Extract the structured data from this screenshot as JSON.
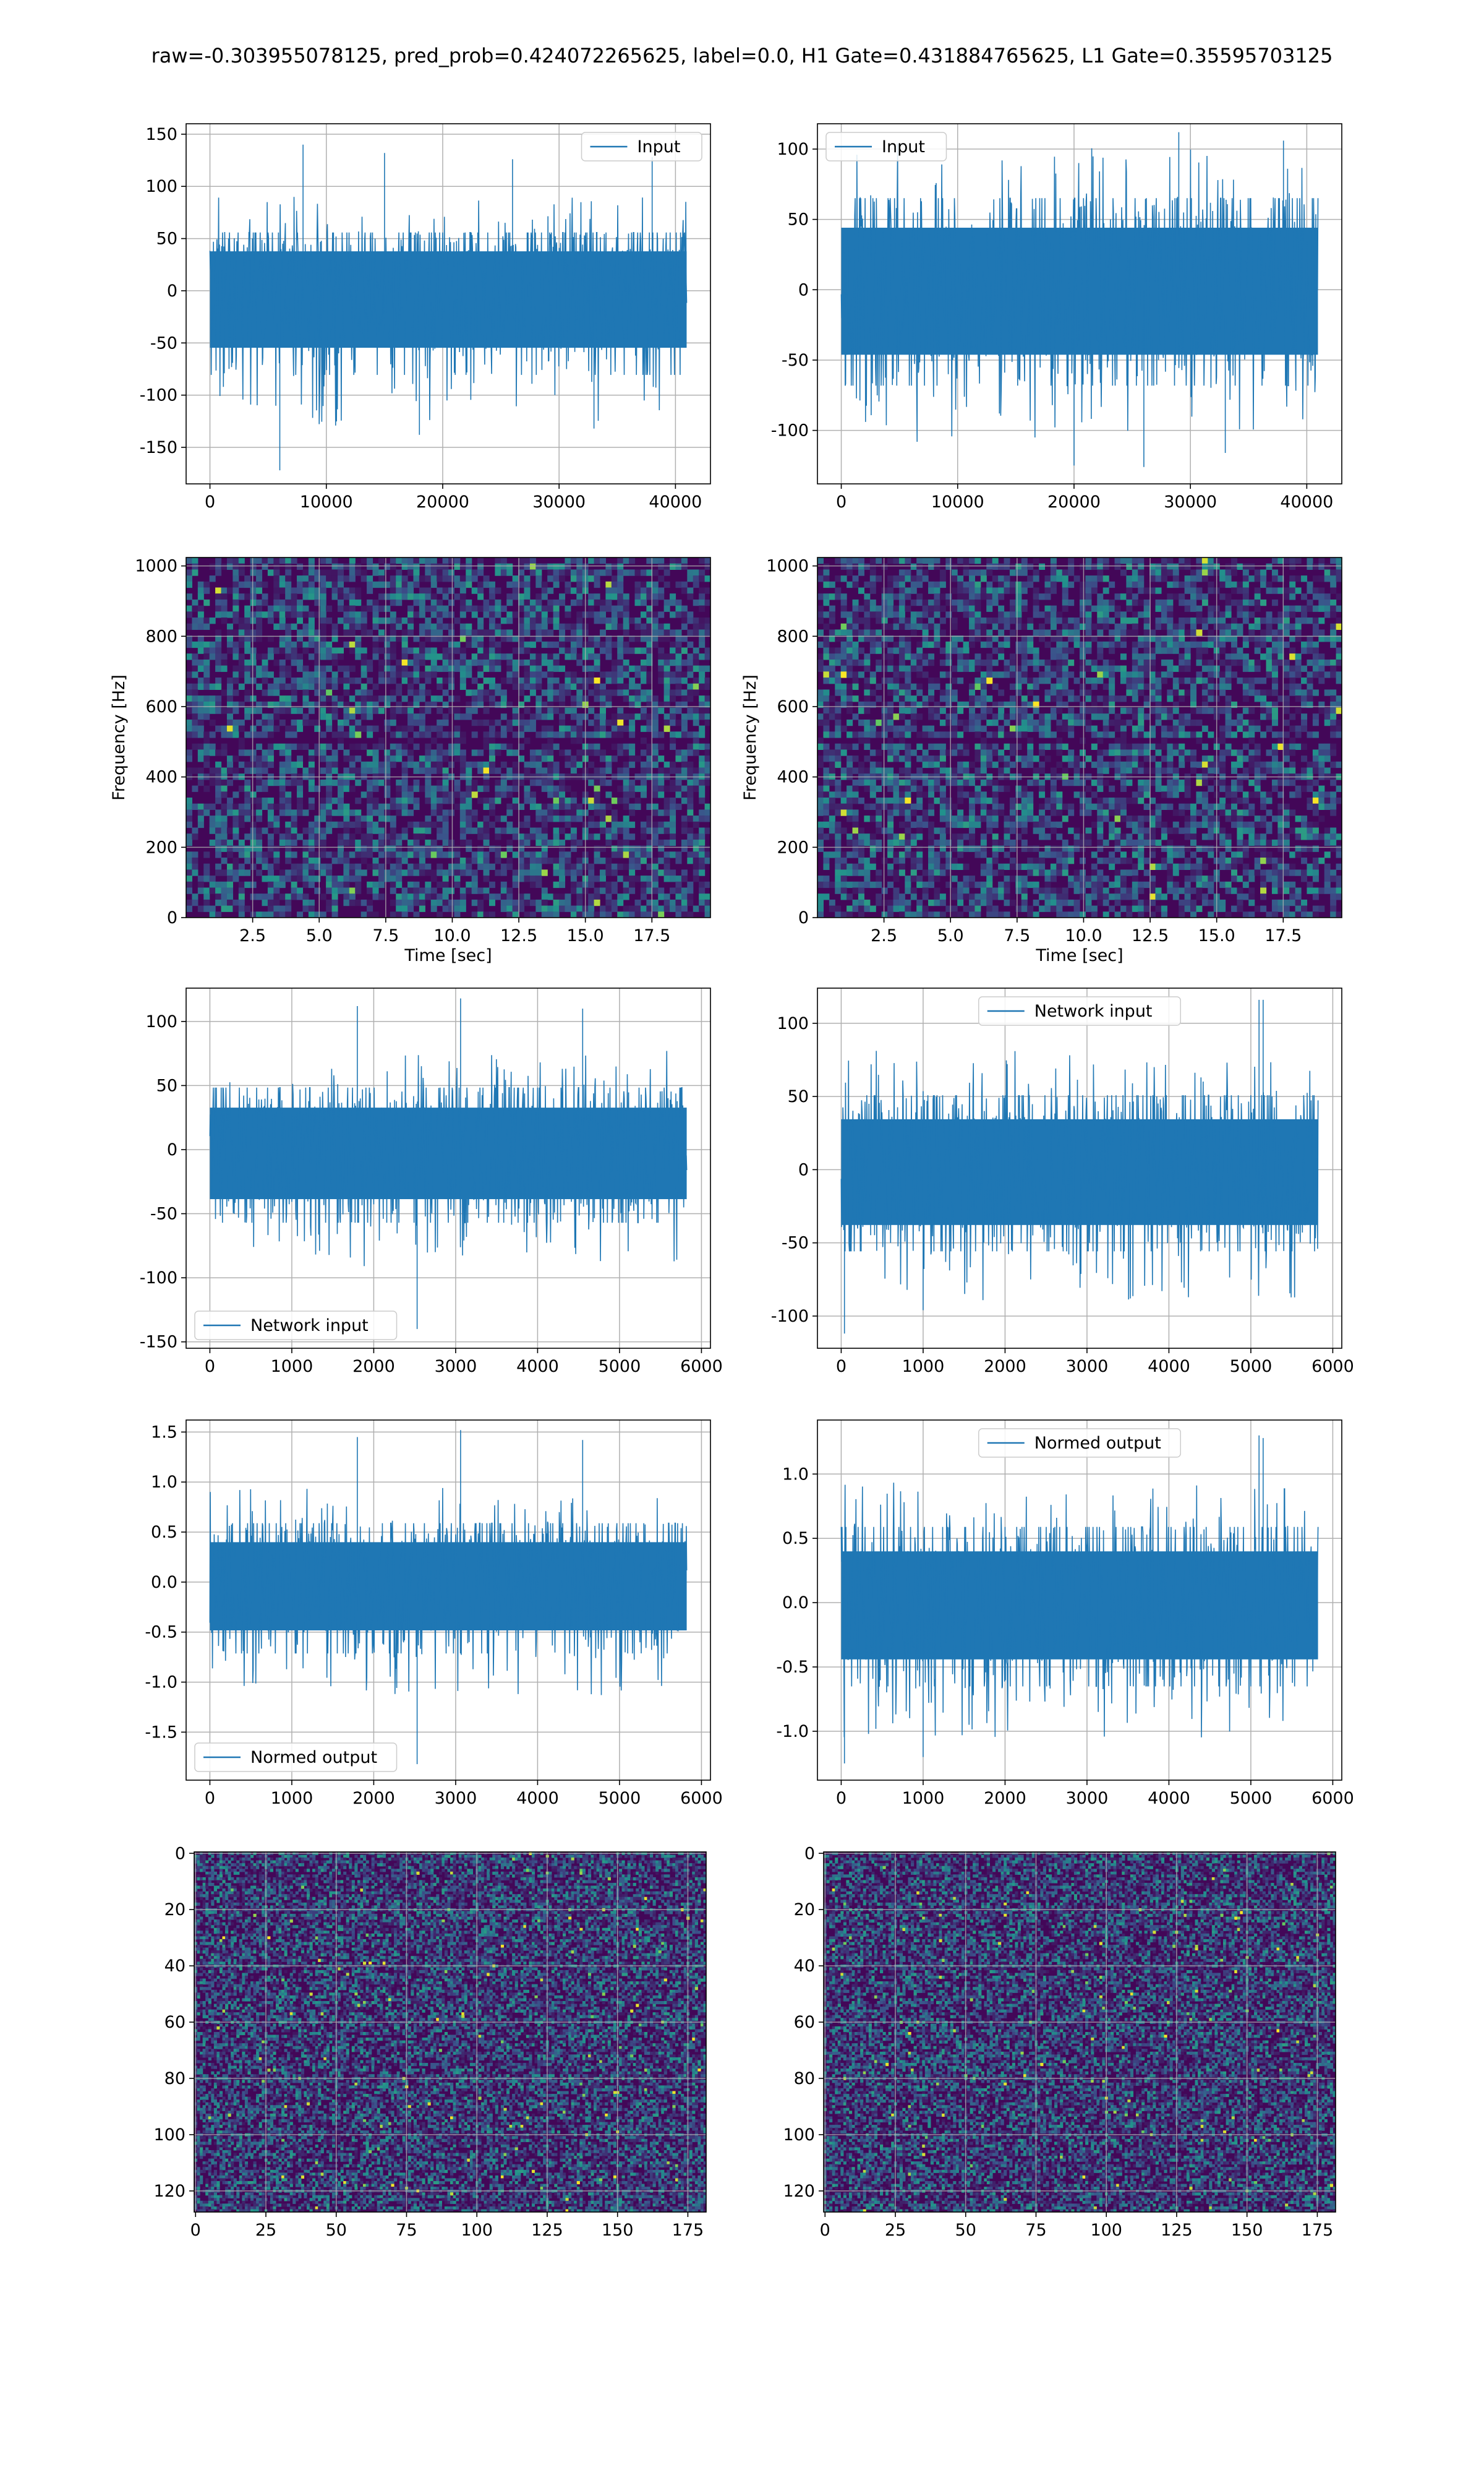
{
  "figure": {
    "suptitle": "raw=-0.303955078125, pred_prob=0.424072265625, label=0.0, H1 Gate=0.431884765625, L1 Gate=0.35595703125",
    "colors": {
      "line": "#1f77b4",
      "grid": "#b0b0b0",
      "cmap_low": "#440154",
      "cmap_mid": "#21918c",
      "cmap_high": "#fde725"
    }
  },
  "chart_data": [
    {
      "id": "p11",
      "type": "line",
      "xlim": [
        -2048,
        43008
      ],
      "ylim": [
        -185,
        160
      ],
      "xticks": [
        0,
        10000,
        20000,
        30000,
        40000
      ],
      "yticks": [
        -150,
        -100,
        -50,
        0,
        50,
        100,
        150
      ],
      "grid": true,
      "legend": "upper right",
      "series": [
        {
          "name": "Input",
          "x": [
            0,
            40960
          ],
          "band": [
            -130,
            90
          ],
          "spikes": [
            [
              6000,
              -172
            ],
            [
              8000,
              140
            ],
            [
              15000,
              132
            ],
            [
              18000,
              -138
            ],
            [
              26000,
              126
            ],
            [
              33000,
              -132
            ],
            [
              38000,
              128
            ]
          ]
        }
      ]
    },
    {
      "id": "p12",
      "type": "line",
      "xlim": [
        -2048,
        43008
      ],
      "ylim": [
        -138,
        118
      ],
      "xticks": [
        0,
        10000,
        20000,
        30000,
        40000
      ],
      "yticks": [
        -100,
        -50,
        0,
        50,
        100
      ],
      "grid": true,
      "legend": "upper left",
      "series": [
        {
          "name": "Input",
          "x": [
            0,
            40960
          ],
          "band": [
            -110,
            105
          ],
          "spikes": [
            [
              20000,
              -125
            ],
            [
              26000,
              -126
            ],
            [
              29000,
              112
            ],
            [
              33000,
              -116
            ],
            [
              38000,
              106
            ]
          ]
        }
      ]
    },
    {
      "id": "p21",
      "type": "heatmap",
      "xlim": [
        0,
        19.7
      ],
      "ylim": [
        0,
        1024
      ],
      "xticks": [
        2.5,
        5.0,
        7.5,
        10.0,
        12.5,
        15.0,
        17.5
      ],
      "yticks": [
        0,
        200,
        400,
        600,
        800,
        1000
      ],
      "xlabel": "Time [sec]",
      "ylabel": "Frequency [Hz]",
      "grid": true,
      "colormap": "viridis",
      "dark_band_hz": 505
    },
    {
      "id": "p22",
      "type": "heatmap",
      "xlim": [
        0,
        19.7
      ],
      "ylim": [
        0,
        1024
      ],
      "xticks": [
        2.5,
        5.0,
        7.5,
        10.0,
        12.5,
        15.0,
        17.5
      ],
      "yticks": [
        0,
        200,
        400,
        600,
        800,
        1000
      ],
      "xlabel": "Time [sec]",
      "ylabel": "Frequency [Hz]",
      "grid": true,
      "colormap": "viridis",
      "dark_band_hz": 505
    },
    {
      "id": "p31",
      "type": "line",
      "xlim": [
        -290,
        6110
      ],
      "ylim": [
        -155,
        126
      ],
      "xticks": [
        0,
        1000,
        2000,
        3000,
        4000,
        5000,
        6000
      ],
      "yticks": [
        -150,
        -100,
        -50,
        0,
        50,
        100
      ],
      "grid": true,
      "legend": "lower left",
      "series": [
        {
          "name": "Network input",
          "x": [
            0,
            5820
          ],
          "band": [
            -92,
            78
          ],
          "spikes": [
            [
              2530,
              -140
            ],
            [
              3060,
              118
            ],
            [
              1800,
              112
            ],
            [
              4550,
              110
            ]
          ]
        }
      ]
    },
    {
      "id": "p32",
      "type": "line",
      "xlim": [
        -290,
        6110
      ],
      "ylim": [
        -122,
        124
      ],
      "xticks": [
        0,
        1000,
        2000,
        3000,
        4000,
        5000,
        6000
      ],
      "yticks": [
        -100,
        -50,
        0,
        50,
        100
      ],
      "grid": true,
      "legend": "upper center",
      "series": [
        {
          "name": "Network input",
          "x": [
            0,
            5820
          ],
          "band": [
            -90,
            82
          ],
          "spikes": [
            [
              5100,
              116
            ],
            [
              5150,
              116
            ],
            [
              40,
              -112
            ],
            [
              1000,
              -96
            ]
          ]
        }
      ]
    },
    {
      "id": "p41",
      "type": "line",
      "xlim": [
        -290,
        6110
      ],
      "ylim": [
        -1.98,
        1.62
      ],
      "xticks": [
        0,
        1000,
        2000,
        3000,
        4000,
        5000,
        6000
      ],
      "yticks": [
        -1.5,
        -1.0,
        -0.5,
        0.0,
        0.5,
        1.0,
        1.5
      ],
      "grid": true,
      "legend": "lower left",
      "series": [
        {
          "name": "Normed output",
          "x": [
            0,
            5820
          ],
          "band": [
            -1.15,
            0.95
          ],
          "spikes": [
            [
              2530,
              -1.82
            ],
            [
              3060,
              1.52
            ],
            [
              1800,
              1.45
            ],
            [
              4550,
              1.42
            ]
          ]
        }
      ]
    },
    {
      "id": "p42",
      "type": "line",
      "xlim": [
        -290,
        6110
      ],
      "ylim": [
        -1.38,
        1.42
      ],
      "xticks": [
        0,
        1000,
        2000,
        3000,
        4000,
        5000,
        6000
      ],
      "yticks": [
        -1.0,
        -0.5,
        0.0,
        0.5,
        1.0
      ],
      "grid": true,
      "legend": "upper center",
      "series": [
        {
          "name": "Normed output",
          "x": [
            0,
            5820
          ],
          "band": [
            -1.05,
            0.95
          ],
          "spikes": [
            [
              5100,
              1.3
            ],
            [
              5150,
              1.28
            ],
            [
              40,
              -1.25
            ],
            [
              1000,
              -1.2
            ]
          ]
        }
      ]
    },
    {
      "id": "p51",
      "type": "heatmap",
      "xlim": [
        -0.5,
        181.5
      ],
      "ylim": [
        127.5,
        -0.5
      ],
      "y_inverted": true,
      "xticks": [
        0,
        25,
        50,
        75,
        100,
        125,
        150,
        175
      ],
      "yticks": [
        0,
        20,
        40,
        60,
        80,
        100,
        120
      ],
      "grid": true,
      "colormap": "viridis",
      "shape": [
        128,
        182
      ]
    },
    {
      "id": "p52",
      "type": "heatmap",
      "xlim": [
        -0.5,
        181.5
      ],
      "ylim": [
        127.5,
        -0.5
      ],
      "y_inverted": true,
      "xticks": [
        0,
        25,
        50,
        75,
        100,
        125,
        150,
        175
      ],
      "yticks": [
        0,
        20,
        40,
        60,
        80,
        100,
        120
      ],
      "grid": true,
      "colormap": "viridis",
      "shape": [
        128,
        182
      ]
    }
  ]
}
